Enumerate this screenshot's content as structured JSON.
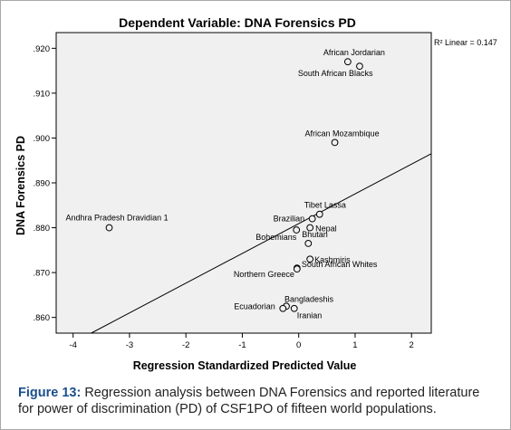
{
  "chart_data": {
    "type": "scatter",
    "title": "Dependent Variable: DNA Forensics PD",
    "xlabel": "Regression Standardized Predicted Value",
    "ylabel": "DNA Forensics PD",
    "xlim": [
      -4.3,
      2.35
    ],
    "ylim": [
      0.8565,
      0.9235
    ],
    "x_ticks": [
      "-4",
      "-3",
      "-2",
      "-1",
      "0",
      "1",
      "2"
    ],
    "y_ticks": [
      ".860",
      ".870",
      ".880",
      ".890",
      ".900",
      ".910",
      ".920"
    ],
    "grid": false,
    "fit_line": {
      "label": "R² Linear = 0.147",
      "x": [
        -3.68,
        2.35
      ],
      "y": [
        0.8565,
        0.8965
      ]
    },
    "points": [
      {
        "label": "African Jordarian",
        "x": 0.87,
        "y": 0.917
      },
      {
        "label": "South African Blacks",
        "x": 1.08,
        "y": 0.916
      },
      {
        "label": "African Mozambique",
        "x": 0.64,
        "y": 0.899
      },
      {
        "label": "Tibet Lassa",
        "x": 0.37,
        "y": 0.883
      },
      {
        "label": "Brazilian",
        "x": 0.24,
        "y": 0.882
      },
      {
        "label": "Nepal",
        "x": 0.2,
        "y": 0.88
      },
      {
        "label": "Bohemians",
        "x": -0.04,
        "y": 0.8795
      },
      {
        "label": "Bhutan",
        "x": 0.17,
        "y": 0.8765
      },
      {
        "label": "Kashmiris",
        "x": 0.2,
        "y": 0.873
      },
      {
        "label": "South African Whites",
        "x": -0.03,
        "y": 0.871
      },
      {
        "label": "Northern Greece",
        "x": -0.03,
        "y": 0.8708
      },
      {
        "label": "Andhra Pradesh Dravidian 1",
        "x": -3.36,
        "y": 0.88
      },
      {
        "label": "Bangladeshis",
        "x": -0.22,
        "y": 0.8625
      },
      {
        "label": "Ecuadorian",
        "x": -0.28,
        "y": 0.862
      },
      {
        "label": "Iranian",
        "x": -0.08,
        "y": 0.862
      }
    ]
  },
  "caption": {
    "label": "Figure 13:",
    "text": " Regression analysis between DNA Forensics and reported literature for power of discrimination (PD) of CSF1PO of fifteen world populations."
  }
}
